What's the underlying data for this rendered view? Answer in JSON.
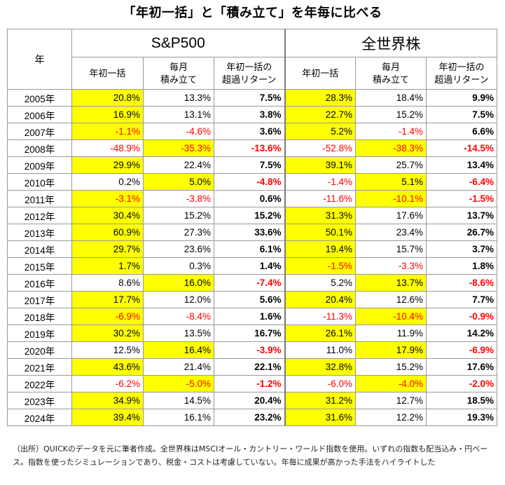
{
  "title": "「年初一括」と「積み立て」を年毎に比べる",
  "headers": {
    "year": "年",
    "group1": "S&P500",
    "group2": "全世界株",
    "lump": "年初一括",
    "monthly": [
      "毎月",
      "積み立て"
    ],
    "excess": [
      "年初一括の",
      "超過リターン"
    ]
  },
  "rows": [
    {
      "year": "2005年",
      "a": "20.8%",
      "b": "13.3%",
      "c": "7.5%",
      "d": "28.3%",
      "e": "18.4%",
      "f": "9.9%",
      "hs": "a",
      "hw": "d"
    },
    {
      "year": "2006年",
      "a": "16.9%",
      "b": "13.1%",
      "c": "3.8%",
      "d": "22.7%",
      "e": "15.2%",
      "f": "7.5%",
      "hs": "a",
      "hw": "d"
    },
    {
      "year": "2007年",
      "a": "-1.1%",
      "b": "-4.6%",
      "c": "3.6%",
      "d": "5.2%",
      "e": "-1.4%",
      "f": "6.6%",
      "hs": "a",
      "hw": "d"
    },
    {
      "year": "2008年",
      "a": "-48.9%",
      "b": "-35.3%",
      "c": "-13.6%",
      "d": "-52.8%",
      "e": "-38.3%",
      "f": "-14.5%",
      "hs": "b",
      "hw": "e"
    },
    {
      "year": "2009年",
      "a": "29.9%",
      "b": "22.4%",
      "c": "7.5%",
      "d": "39.1%",
      "e": "25.7%",
      "f": "13.4%",
      "hs": "a",
      "hw": "d"
    },
    {
      "year": "2010年",
      "a": "0.2%",
      "b": "5.0%",
      "c": "-4.8%",
      "d": "-1.4%",
      "e": "5.1%",
      "f": "-6.4%",
      "hs": "b",
      "hw": "e"
    },
    {
      "year": "2011年",
      "a": "-3.1%",
      "b": "-3.8%",
      "c": "0.6%",
      "d": "-11.6%",
      "e": "-10.1%",
      "f": "-1.5%",
      "hs": "a",
      "hw": "e"
    },
    {
      "year": "2012年",
      "a": "30.4%",
      "b": "15.2%",
      "c": "15.2%",
      "d": "31.3%",
      "e": "17.6%",
      "f": "13.7%",
      "hs": "a",
      "hw": "d"
    },
    {
      "year": "2013年",
      "a": "60.9%",
      "b": "27.3%",
      "c": "33.6%",
      "d": "50.1%",
      "e": "23.4%",
      "f": "26.7%",
      "hs": "a",
      "hw": "d"
    },
    {
      "year": "2014年",
      "a": "29.7%",
      "b": "23.6%",
      "c": "6.1%",
      "d": "19.4%",
      "e": "15.7%",
      "f": "3.7%",
      "hs": "a",
      "hw": "d"
    },
    {
      "year": "2015年",
      "a": "1.7%",
      "b": "0.3%",
      "c": "1.4%",
      "d": "-1.5%",
      "e": "-3.3%",
      "f": "1.8%",
      "hs": "a",
      "hw": "d"
    },
    {
      "year": "2016年",
      "a": "8.6%",
      "b": "16.0%",
      "c": "-7.4%",
      "d": "5.2%",
      "e": "13.7%",
      "f": "-8.6%",
      "hs": "b",
      "hw": "e"
    },
    {
      "year": "2017年",
      "a": "17.7%",
      "b": "12.0%",
      "c": "5.6%",
      "d": "20.4%",
      "e": "12.6%",
      "f": "7.7%",
      "hs": "a",
      "hw": "d"
    },
    {
      "year": "2018年",
      "a": "-6.9%",
      "b": "-8.4%",
      "c": "1.6%",
      "d": "-11.3%",
      "e": "-10.4%",
      "f": "-0.9%",
      "hs": "a",
      "hw": "e"
    },
    {
      "year": "2019年",
      "a": "30.2%",
      "b": "13.5%",
      "c": "16.7%",
      "d": "26.1%",
      "e": "11.9%",
      "f": "14.2%",
      "hs": "a",
      "hw": "d"
    },
    {
      "year": "2020年",
      "a": "12.5%",
      "b": "16.4%",
      "c": "-3.9%",
      "d": "11.0%",
      "e": "17.9%",
      "f": "-6.9%",
      "hs": "b",
      "hw": "e"
    },
    {
      "year": "2021年",
      "a": "43.6%",
      "b": "21.4%",
      "c": "22.1%",
      "d": "32.8%",
      "e": "15.2%",
      "f": "17.6%",
      "hs": "a",
      "hw": "d"
    },
    {
      "year": "2022年",
      "a": "-6.2%",
      "b": "-5.0%",
      "c": "-1.2%",
      "d": "-6.0%",
      "e": "-4.0%",
      "f": "-2.0%",
      "hs": "b",
      "hw": "e"
    },
    {
      "year": "2023年",
      "a": "34.9%",
      "b": "14.5%",
      "c": "20.4%",
      "d": "31.2%",
      "e": "12.7%",
      "f": "18.5%",
      "hs": "a",
      "hw": "d"
    },
    {
      "year": "2024年",
      "a": "39.4%",
      "b": "16.1%",
      "c": "23.2%",
      "d": "31.6%",
      "e": "12.2%",
      "f": "19.3%",
      "hs": "a",
      "hw": "d"
    }
  ],
  "colors": {
    "highlight": "#ffff00",
    "negative": "#ff0000",
    "border": "#9a9a9a"
  },
  "note": "（出所）QUICKのデータを元に筆者作成。全世界株はMSCIオール・カントリー・ワールド指数を使用。いずれの指数も配当込み・円ベース。指数を使ったシミュレーションであり、税金・コストは考慮していない。年毎に成果が高かった手法をハイライトした"
}
